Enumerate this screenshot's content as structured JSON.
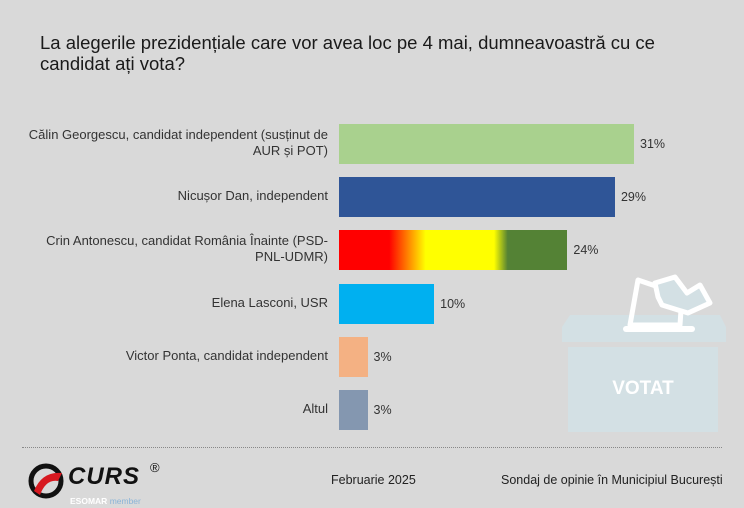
{
  "title": "La alegerile prezidențiale care vor avea loc pe 4 mai, dumneavoastră cu ce candidat ați vota?",
  "chart_data": {
    "type": "bar",
    "orientation": "horizontal",
    "title": "La alegerile prezidențiale care vor avea loc pe 4 mai, dumneavoastră cu ce candidat ați vota?",
    "categories": [
      "Călin Georgescu, candidat independent (susținut de AUR și POT)",
      "Nicușor Dan, independent",
      "Crin Antonescu, candidat România Înainte (PSD-PNL-UDMR)",
      "Elena Lasconi, USR",
      "Victor Ponta, candidat independent",
      "Altul"
    ],
    "values": [
      31,
      29,
      24,
      10,
      3,
      3
    ],
    "labels": [
      "31%",
      "29%",
      "24%",
      "10%",
      "3%",
      "3%"
    ],
    "colors": [
      "#a9d18e",
      "#2f5597",
      "gradient",
      "#00b0f0",
      "#f4b183",
      "#8497b0"
    ],
    "xlim": [
      0,
      31
    ],
    "grid": false,
    "legend": "none"
  },
  "ballot_box": {
    "label": "VOTAT"
  },
  "footer": {
    "logo": "CURS",
    "esomar": "ESOMAR",
    "member": "member",
    "date": "Februarie 2025",
    "survey": "Sondaj de opinie în Municipiul București"
  }
}
